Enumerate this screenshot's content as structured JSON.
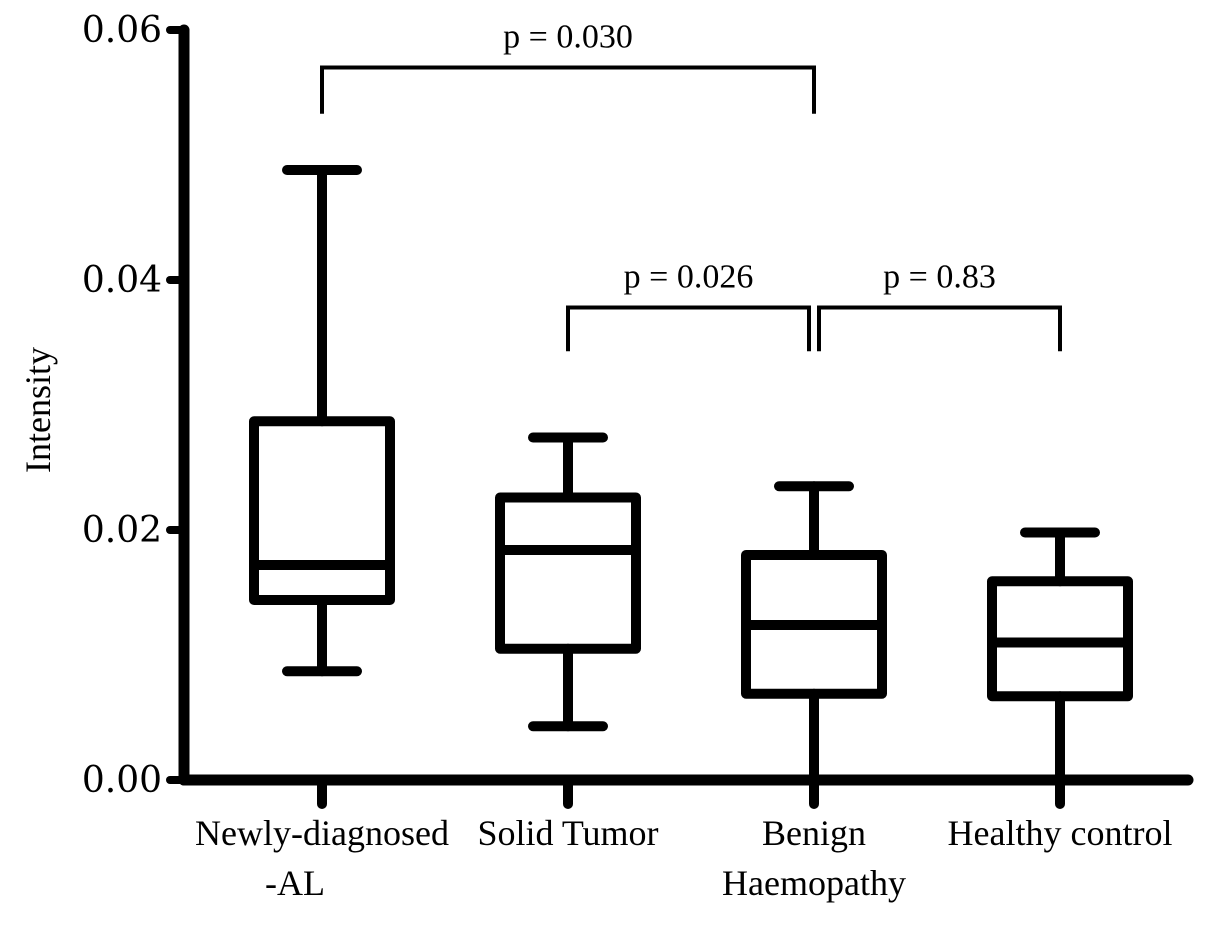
{
  "chart_data": {
    "type": "box",
    "ylabel": "Intensity",
    "ylim": [
      0,
      0.06
    ],
    "yticks": [
      {
        "value": 0.0,
        "label": "0.00"
      },
      {
        "value": 0.02,
        "label": "0.02"
      },
      {
        "value": 0.04,
        "label": "0.04"
      },
      {
        "value": 0.06,
        "label": "0.06"
      }
    ],
    "categories": [
      {
        "lines": [
          "Newly-diagnosed",
          "-AL"
        ]
      },
      {
        "lines": [
          "Solid Tumor"
        ]
      },
      {
        "lines": [
          "Benign",
          "Haemopathy"
        ]
      },
      {
        "lines": [
          "Healthy control"
        ]
      }
    ],
    "boxes": [
      {
        "min": 0.0087,
        "q1": 0.0144,
        "median": 0.0172,
        "q3": 0.0287,
        "max": 0.0488
      },
      {
        "min": 0.0043,
        "q1": 0.0105,
        "median": 0.0184,
        "q3": 0.0226,
        "max": 0.0274
      },
      {
        "min": -0.0022,
        "q1": 0.0069,
        "median": 0.0124,
        "q3": 0.018,
        "max": 0.0235
      },
      {
        "min": -0.0022,
        "q1": 0.0067,
        "median": 0.011,
        "q3": 0.0159,
        "max": 0.0198
      }
    ],
    "annotations": [
      {
        "from": 0,
        "to": 2,
        "level": 0.057,
        "drop_to": 0.0533,
        "label": "p = 0.030"
      },
      {
        "from": 1,
        "to": 2,
        "level": 0.0378,
        "drop_to": 0.0343,
        "label": "p = 0.026"
      },
      {
        "from": 2,
        "to": 3,
        "level": 0.0378,
        "drop_to": 0.0343,
        "label": "p = 0.83"
      }
    ]
  }
}
